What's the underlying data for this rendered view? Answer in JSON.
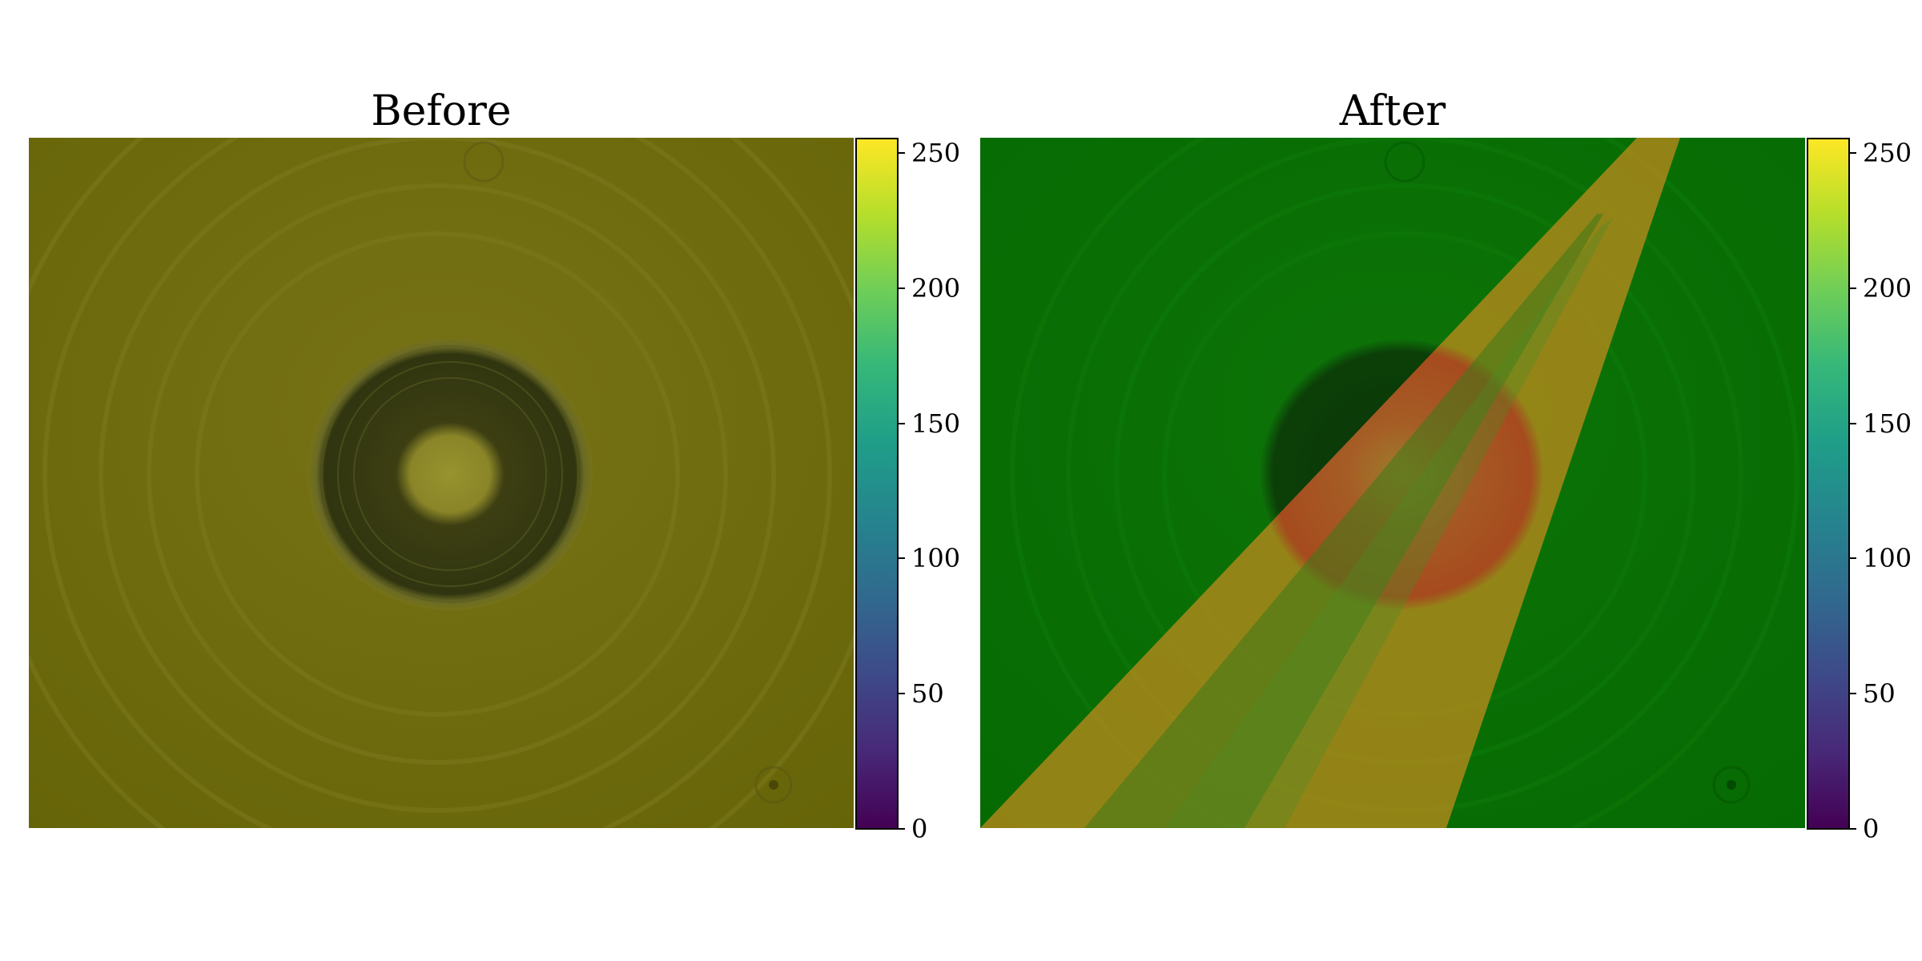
{
  "panels": [
    {
      "title": "Before"
    },
    {
      "title": "After"
    }
  ],
  "colorbar": {
    "colormap": "viridis",
    "range": [
      0,
      255
    ],
    "ticks": [
      "0",
      "50",
      "100",
      "150",
      "200",
      "250"
    ]
  },
  "colors": {
    "before_background": "#6b6a0d",
    "after_background": "#0a6b05",
    "overlay": "#c88a1e"
  }
}
